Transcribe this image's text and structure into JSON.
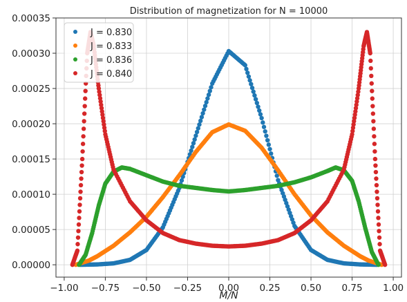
{
  "chart_data": {
    "type": "scatter",
    "title": "Distribution of magnetization for N = 10000",
    "xlabel": "M/N",
    "ylabel": "",
    "xlim": [
      -1.05,
      1.05
    ],
    "ylim": [
      -1.75e-05,
      0.00035
    ],
    "xticks": [
      -1.0,
      -0.75,
      -0.5,
      -0.25,
      0.0,
      0.25,
      0.5,
      0.75,
      1.0
    ],
    "xtick_labels": [
      "−1.00",
      "−0.75",
      "−0.50",
      "−0.25",
      "0.00",
      "0.25",
      "0.50",
      "0.75",
      "1.00"
    ],
    "yticks": [
      0.0,
      5e-05,
      0.0001,
      0.00015,
      0.0002,
      0.00025,
      0.0003,
      0.00035
    ],
    "ytick_labels": [
      "0.00000",
      "0.00005",
      "0.00010",
      "0.00015",
      "0.00020",
      "0.00025",
      "0.00030",
      "0.00035"
    ],
    "grid": true,
    "legend_position": "top-left",
    "series": [
      {
        "name": "J = 0.830",
        "color": "#1f77b4",
        "x": [
          -0.9,
          -0.8,
          -0.7,
          -0.6,
          -0.5,
          -0.4,
          -0.3,
          -0.2,
          -0.1,
          0.0,
          0.1,
          0.2,
          0.3,
          0.4,
          0.5,
          0.6,
          0.7,
          0.8,
          0.9
        ],
        "y": [
          0.0,
          5e-07,
          2e-06,
          7e-06,
          2.1e-05,
          5.3e-05,
          0.000109,
          0.000183,
          0.000257,
          0.000303,
          0.000283,
          0.000208,
          0.00012,
          5.5e-05,
          2.1e-05,
          7e-06,
          2e-06,
          5e-07,
          0.0
        ]
      },
      {
        "name": "J = 0.833",
        "color": "#ff7f0e",
        "x": [
          -0.93,
          -0.85,
          -0.8,
          -0.7,
          -0.6,
          -0.5,
          -0.4,
          -0.3,
          -0.2,
          -0.1,
          0.0,
          0.1,
          0.2,
          0.3,
          0.4,
          0.5,
          0.6,
          0.7,
          0.8,
          0.85,
          0.93
        ],
        "y": [
          0.0,
          6e-06,
          1.2e-05,
          2.7e-05,
          4.6e-05,
          6.8e-05,
          9.6e-05,
          0.000127,
          0.00016,
          0.000188,
          0.000199,
          0.00019,
          0.000166,
          0.000134,
          0.0001,
          7e-05,
          4.6e-05,
          2.7e-05,
          1.2e-05,
          6e-06,
          0.0
        ]
      },
      {
        "name": "J = 0.836",
        "color": "#2ca02c",
        "x": [
          -0.91,
          -0.87,
          -0.83,
          -0.79,
          -0.75,
          -0.7,
          -0.65,
          -0.6,
          -0.5,
          -0.4,
          -0.3,
          -0.2,
          -0.1,
          0.0,
          0.1,
          0.2,
          0.3,
          0.4,
          0.5,
          0.6,
          0.65,
          0.7,
          0.75,
          0.79,
          0.83,
          0.87,
          0.91
        ],
        "y": [
          0.0,
          1.4e-05,
          4.5e-05,
          8.4e-05,
          0.000115,
          0.000132,
          0.000138,
          0.000136,
          0.000127,
          0.000118,
          0.000112,
          0.000109,
          0.000106,
          0.000104,
          0.000106,
          0.000109,
          0.000112,
          0.000117,
          0.000124,
          0.000133,
          0.000138,
          0.000134,
          0.000119,
          9e-05,
          5.2e-05,
          1.8e-05,
          0.0
        ]
      },
      {
        "name": "J = 0.840",
        "color": "#d62728",
        "x": [
          -0.95,
          -0.92,
          -0.89,
          -0.86,
          -0.84,
          -0.82,
          -0.79,
          -0.75,
          -0.7,
          -0.6,
          -0.5,
          -0.4,
          -0.3,
          -0.2,
          -0.1,
          0.0,
          0.1,
          0.2,
          0.3,
          0.4,
          0.5,
          0.6,
          0.7,
          0.75,
          0.79,
          0.82,
          0.84,
          0.86,
          0.89,
          0.92,
          0.95
        ],
        "y": [
          0.0,
          2e-05,
          0.00015,
          0.0003,
          0.00033,
          0.00031,
          0.00025,
          0.000185,
          0.000135,
          9e-05,
          6.3e-05,
          4.5e-05,
          3.5e-05,
          3e-05,
          2.7e-05,
          2.6e-05,
          2.7e-05,
          3e-05,
          3.5e-05,
          4.5e-05,
          6.3e-05,
          9e-05,
          0.000135,
          0.000185,
          0.00025,
          0.00031,
          0.00033,
          0.0003,
          0.00015,
          2e-05,
          0.0
        ]
      }
    ]
  }
}
